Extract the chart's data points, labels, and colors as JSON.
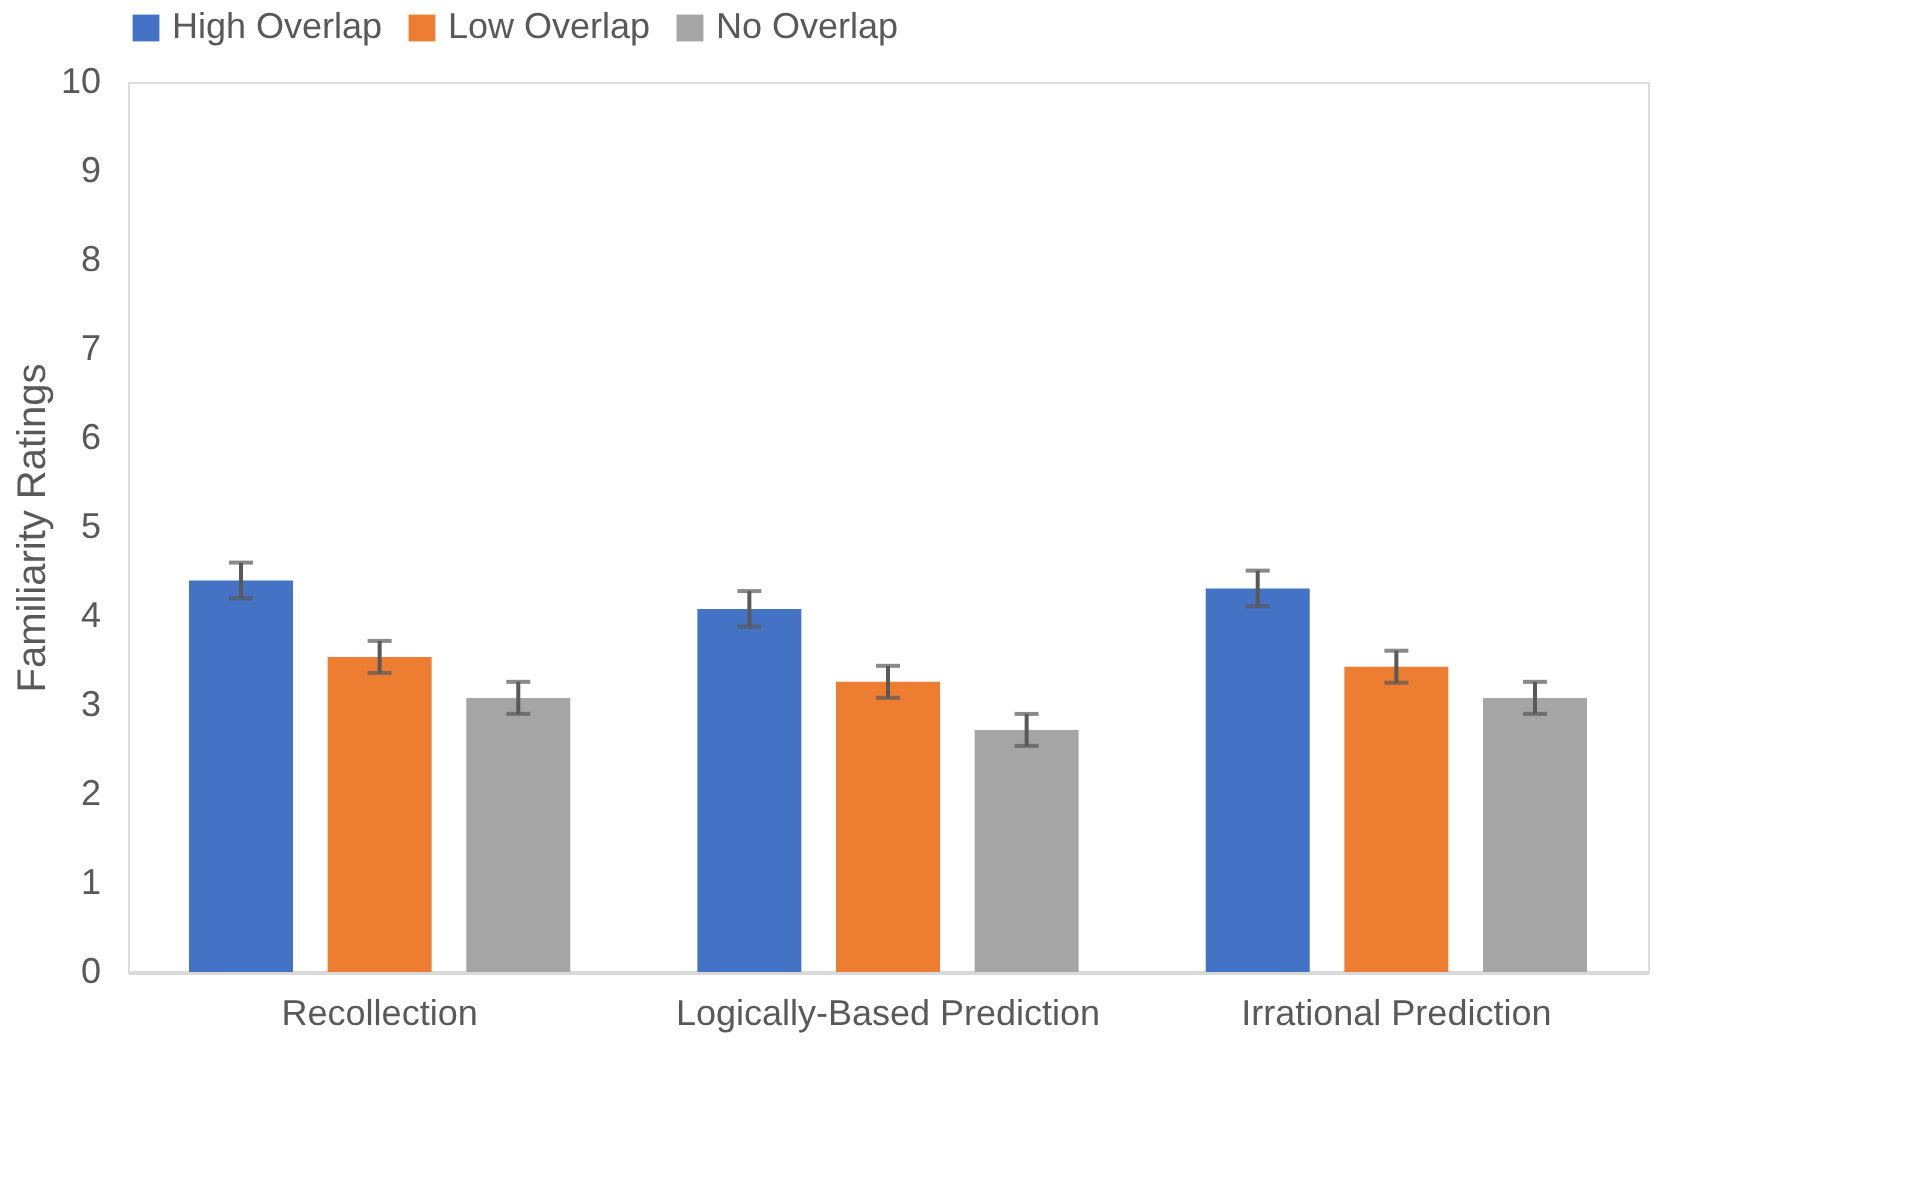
{
  "chart_data": {
    "type": "bar",
    "ylabel": "Familiarity Ratings",
    "categories": [
      "Recollection",
      "Logically-Based Prediction",
      "Irrational Prediction"
    ],
    "series": [
      {
        "name": "High Overlap",
        "color": "#4472c4",
        "values": [
          4.4,
          4.08,
          4.31
        ],
        "errors": [
          0.2,
          0.2,
          0.2
        ]
      },
      {
        "name": "Low Overlap",
        "color": "#ed7d31",
        "values": [
          3.54,
          3.26,
          3.43
        ],
        "errors": [
          0.18,
          0.18,
          0.18
        ]
      },
      {
        "name": "No Overlap",
        "color": "#a5a5a5",
        "values": [
          3.08,
          2.72,
          3.08
        ],
        "errors": [
          0.18,
          0.18,
          0.18
        ]
      }
    ],
    "ylim": [
      0,
      10
    ],
    "yticks": [
      0,
      1,
      2,
      3,
      4,
      5,
      6,
      7,
      8,
      9,
      10
    ],
    "grid": false,
    "legend": "top"
  }
}
